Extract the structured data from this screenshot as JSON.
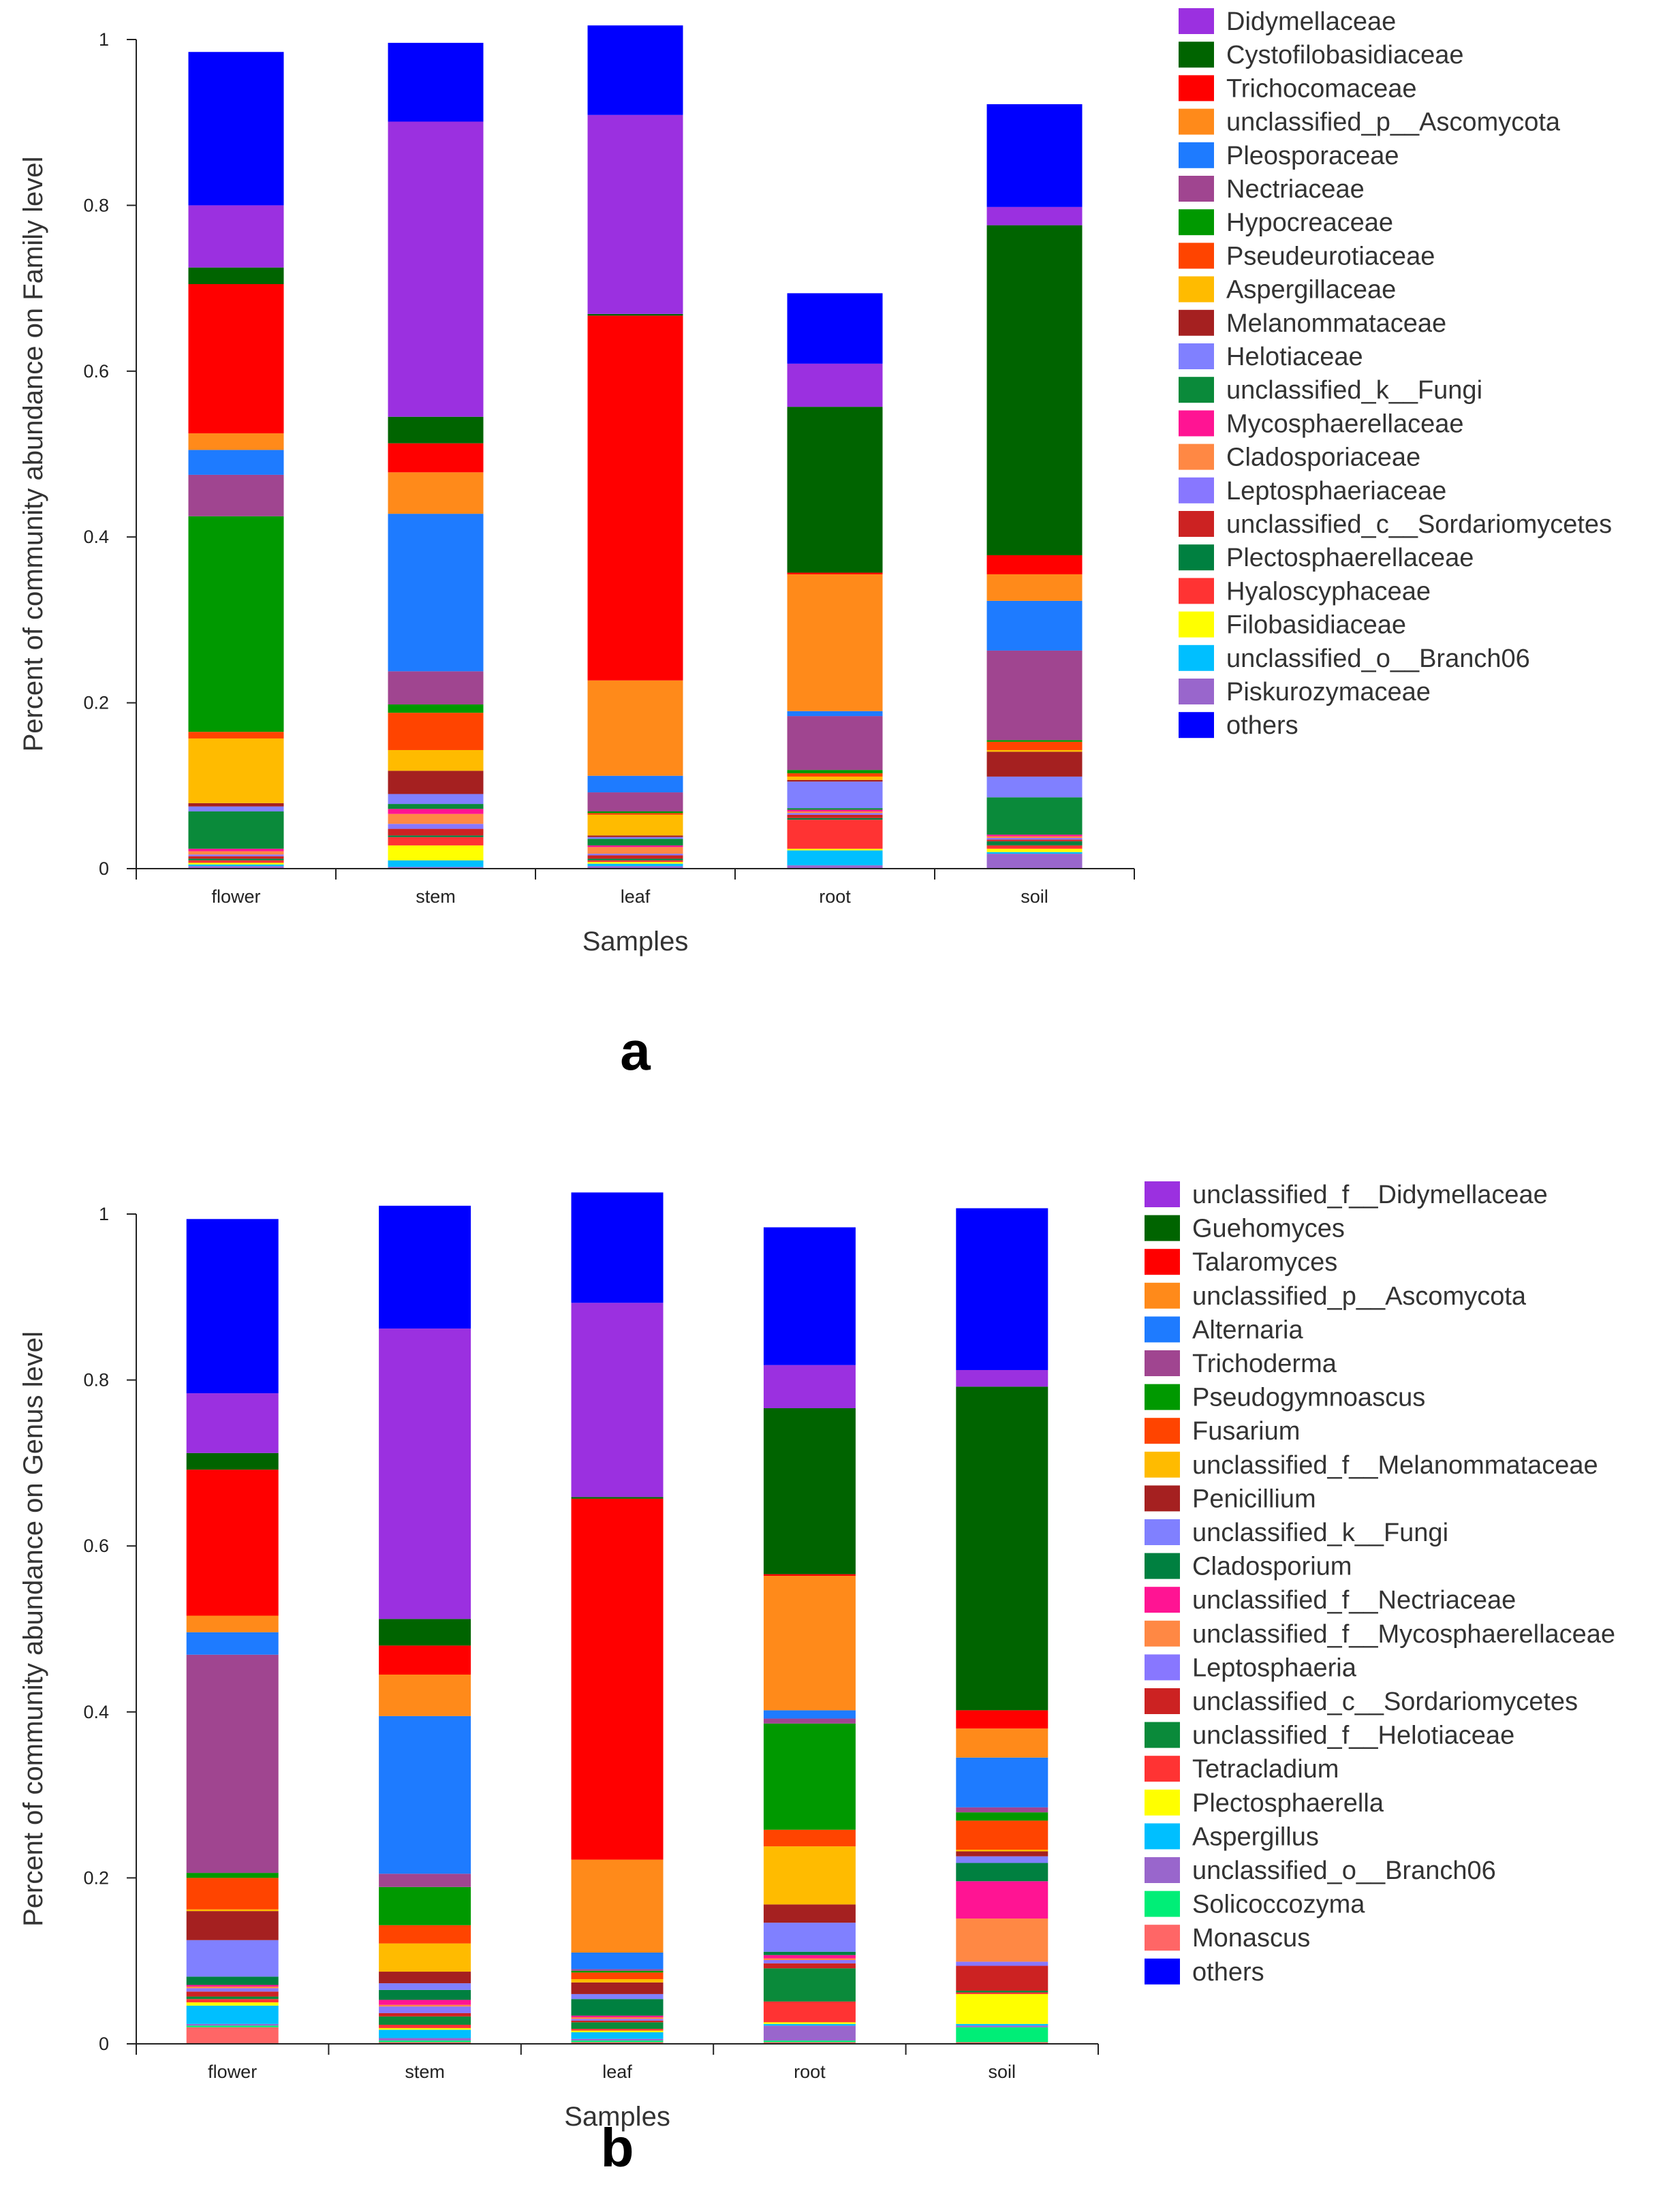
{
  "chart_data": [
    {
      "type": "stacked-bar",
      "panel_label": "a",
      "xlabel": "Samples",
      "ylabel": "Percent of community abundance on Family level",
      "ylim": [
        0,
        1
      ],
      "yticks": [
        "0",
        "0.2",
        "0.4",
        "0.6",
        "0.8",
        "1"
      ],
      "categories": [
        "flower",
        "stem",
        "leaf",
        "root",
        "soil"
      ],
      "legend_position": "right",
      "series": [
        {
          "name": "Piskurozymaceae",
          "color": "#9966cc",
          "values": [
            0.003,
            0.002,
            0.003,
            0.004,
            0.018
          ]
        },
        {
          "name": "unclassified_o__Branch06",
          "color": "#00bfff",
          "values": [
            0.002,
            0.008,
            0.003,
            0.018,
            0.002
          ]
        },
        {
          "name": "Filobasidiaceae",
          "color": "#ffff00",
          "values": [
            0.002,
            0.018,
            0.002,
            0.002,
            0.004
          ]
        },
        {
          "name": "Hyaloscyphaceae",
          "color": "#ff3333",
          "values": [
            0.003,
            0.01,
            0.002,
            0.035,
            0.004
          ]
        },
        {
          "name": "Plectosphaerellaceae",
          "color": "#008040",
          "values": [
            0.002,
            0.002,
            0.002,
            0.002,
            0.005
          ]
        },
        {
          "name": "unclassified_c__Sordariomycetes",
          "color": "#cc2222",
          "values": [
            0.003,
            0.008,
            0.004,
            0.004,
            0.002
          ]
        },
        {
          "name": "Leptosphaeriaceae",
          "color": "#8877ff",
          "values": [
            0.002,
            0.006,
            0.002,
            0.002,
            0.002
          ]
        },
        {
          "name": "Cladosporiaceae",
          "color": "#ff8844",
          "values": [
            0.004,
            0.012,
            0.008,
            0.002,
            0.002
          ]
        },
        {
          "name": "Mycosphaerellaceae",
          "color": "#ff1493",
          "values": [
            0.003,
            0.006,
            0.002,
            0.002,
            0.002
          ]
        },
        {
          "name": "unclassified_k__Fungi",
          "color": "#0a8a3a",
          "values": [
            0.045,
            0.006,
            0.008,
            0.002,
            0.045
          ]
        },
        {
          "name": "Helotiaceae",
          "color": "#8080ff",
          "values": [
            0.006,
            0.012,
            0.002,
            0.032,
            0.025
          ]
        },
        {
          "name": "Melanommataceae",
          "color": "#a52020",
          "values": [
            0.004,
            0.028,
            0.002,
            0.002,
            0.03
          ]
        },
        {
          "name": "Aspergillaceae",
          "color": "#ffbb00",
          "values": [
            0.078,
            0.025,
            0.025,
            0.004,
            0.002
          ]
        },
        {
          "name": "Pseudeurotiaceae",
          "color": "#ff4400",
          "values": [
            0.008,
            0.045,
            0.002,
            0.004,
            0.01
          ]
        },
        {
          "name": "Hypocreaceae",
          "color": "#009900",
          "values": [
            0.26,
            0.01,
            0.002,
            0.004,
            0.002
          ]
        },
        {
          "name": "Nectriaceae",
          "color": "#a04590",
          "values": [
            0.05,
            0.04,
            0.023,
            0.065,
            0.108
          ]
        },
        {
          "name": "Pleosporaceae",
          "color": "#1e7bff",
          "values": [
            0.03,
            0.19,
            0.02,
            0.006,
            0.06
          ]
        },
        {
          "name": "unclassified_p__Ascomycota",
          "color": "#ff8a1a",
          "values": [
            0.02,
            0.05,
            0.115,
            0.165,
            0.032
          ]
        },
        {
          "name": "Trichocomaceae",
          "color": "#ff0000",
          "values": [
            0.18,
            0.035,
            0.44,
            0.002,
            0.023
          ]
        },
        {
          "name": "Cystofilobasidiaceae",
          "color": "#006400",
          "values": [
            0.02,
            0.032,
            0.002,
            0.2,
            0.398
          ]
        },
        {
          "name": "Didymellaceae",
          "color": "#9b30e0",
          "values": [
            0.075,
            0.356,
            0.24,
            0.052,
            0.022
          ]
        },
        {
          "name": "others",
          "color": "#0000ff",
          "values": [
            0.185,
            0.095,
            0.108,
            0.085,
            0.124
          ]
        }
      ],
      "legend_order": [
        "Didymellaceae",
        "Cystofilobasidiaceae",
        "Trichocomaceae",
        "unclassified_p__Ascomycota",
        "Pleosporaceae",
        "Nectriaceae",
        "Hypocreaceae",
        "Pseudeurotiaceae",
        "Aspergillaceae",
        "Melanommataceae",
        "Helotiaceae",
        "unclassified_k__Fungi",
        "Mycosphaerellaceae",
        "Cladosporiaceae",
        "Leptosphaeriaceae",
        "unclassified_c__Sordariomycetes",
        "Plectosphaerellaceae",
        "Hyaloscyphaceae",
        "Filobasidiaceae",
        "unclassified_o__Branch06",
        "Piskurozymaceae",
        "others"
      ]
    },
    {
      "type": "stacked-bar",
      "panel_label": "b",
      "xlabel": "Samples",
      "ylabel": "Percent of community abundance on Genus level",
      "ylim": [
        0,
        1
      ],
      "yticks": [
        "0",
        "0.2",
        "0.4",
        "0.6",
        "0.8",
        "1"
      ],
      "categories": [
        "flower",
        "stem",
        "leaf",
        "root",
        "soil"
      ],
      "legend_position": "right",
      "series": [
        {
          "name": "Monascus",
          "color": "#ff6666",
          "values": [
            0.02,
            0.002,
            0.002,
            0.002,
            0.002
          ]
        },
        {
          "name": "Solicoccozyma",
          "color": "#00ee77",
          "values": [
            0.002,
            0.002,
            0.002,
            0.002,
            0.018
          ]
        },
        {
          "name": "unclassified_o__Branch06",
          "color": "#9966cc",
          "values": [
            0.002,
            0.003,
            0.002,
            0.018,
            0.002
          ]
        },
        {
          "name": "Aspergillus",
          "color": "#00bfff",
          "values": [
            0.022,
            0.01,
            0.008,
            0.002,
            0.002
          ]
        },
        {
          "name": "Plectosphaerella",
          "color": "#ffff00",
          "values": [
            0.004,
            0.002,
            0.002,
            0.002,
            0.036
          ]
        },
        {
          "name": "Tetracladium",
          "color": "#ff3333",
          "values": [
            0.004,
            0.004,
            0.002,
            0.025,
            0.002
          ]
        },
        {
          "name": "unclassified_f__Helotiaceae",
          "color": "#0a8a3a",
          "values": [
            0.003,
            0.01,
            0.008,
            0.04,
            0.002
          ]
        },
        {
          "name": "unclassified_c__Sordariomycetes",
          "color": "#cc2222",
          "values": [
            0.006,
            0.004,
            0.002,
            0.006,
            0.03
          ]
        },
        {
          "name": "Leptosphaeria",
          "color": "#8877ff",
          "values": [
            0.004,
            0.008,
            0.002,
            0.004,
            0.005
          ]
        },
        {
          "name": "unclassified_f__Mycosphaerellaceae",
          "color": "#ff8844",
          "values": [
            0.002,
            0.002,
            0.002,
            0.002,
            0.052
          ]
        },
        {
          "name": "unclassified_f__Nectriaceae",
          "color": "#ff1493",
          "values": [
            0.002,
            0.006,
            0.002,
            0.004,
            0.045
          ]
        },
        {
          "name": "Cladosporium",
          "color": "#008040",
          "values": [
            0.01,
            0.012,
            0.02,
            0.004,
            0.022
          ]
        },
        {
          "name": "unclassified_k__Fungi",
          "color": "#8080ff",
          "values": [
            0.044,
            0.008,
            0.006,
            0.035,
            0.008
          ]
        },
        {
          "name": "Penicillium",
          "color": "#a52020",
          "values": [
            0.035,
            0.014,
            0.014,
            0.022,
            0.006
          ]
        },
        {
          "name": "unclassified_f__Melanommataceae",
          "color": "#ffbb00",
          "values": [
            0.002,
            0.034,
            0.004,
            0.07,
            0.002
          ]
        },
        {
          "name": "Fusarium",
          "color": "#ff4400",
          "values": [
            0.038,
            0.022,
            0.008,
            0.02,
            0.035
          ]
        },
        {
          "name": "Pseudogymnoascus",
          "color": "#009900",
          "values": [
            0.006,
            0.046,
            0.002,
            0.128,
            0.01
          ]
        },
        {
          "name": "Trichoderma",
          "color": "#a04590",
          "values": [
            0.263,
            0.016,
            0.002,
            0.006,
            0.006
          ]
        },
        {
          "name": "Alternaria",
          "color": "#1e7bff",
          "values": [
            0.027,
            0.19,
            0.02,
            0.01,
            0.06
          ]
        },
        {
          "name": "unclassified_p__Ascomycota",
          "color": "#ff8a1a",
          "values": [
            0.02,
            0.05,
            0.112,
            0.162,
            0.035
          ]
        },
        {
          "name": "Talaromyces",
          "color": "#ff0000",
          "values": [
            0.176,
            0.035,
            0.435,
            0.002,
            0.022
          ]
        },
        {
          "name": "Guehomyces",
          "color": "#006400",
          "values": [
            0.02,
            0.032,
            0.002,
            0.2,
            0.39
          ]
        },
        {
          "name": "unclassified_f__Didymellaceae",
          "color": "#9b30e0",
          "values": [
            0.072,
            0.35,
            0.234,
            0.052,
            0.02
          ]
        },
        {
          "name": "others",
          "color": "#0000ff",
          "values": [
            0.21,
            0.148,
            0.133,
            0.166,
            0.195
          ]
        }
      ],
      "legend_order": [
        "unclassified_f__Didymellaceae",
        "Guehomyces",
        "Talaromyces",
        "unclassified_p__Ascomycota",
        "Alternaria",
        "Trichoderma",
        "Pseudogymnoascus",
        "Fusarium",
        "unclassified_f__Melanommataceae",
        "Penicillium",
        "unclassified_k__Fungi",
        "Cladosporium",
        "unclassified_f__Nectriaceae",
        "unclassified_f__Mycosphaerellaceae",
        "Leptosphaeria",
        "unclassified_c__Sordariomycetes",
        "unclassified_f__Helotiaceae",
        "Tetracladium",
        "Plectosphaerella",
        "Aspergillus",
        "unclassified_o__Branch06",
        "Solicoccozyma",
        "Monascus",
        "others"
      ]
    }
  ]
}
